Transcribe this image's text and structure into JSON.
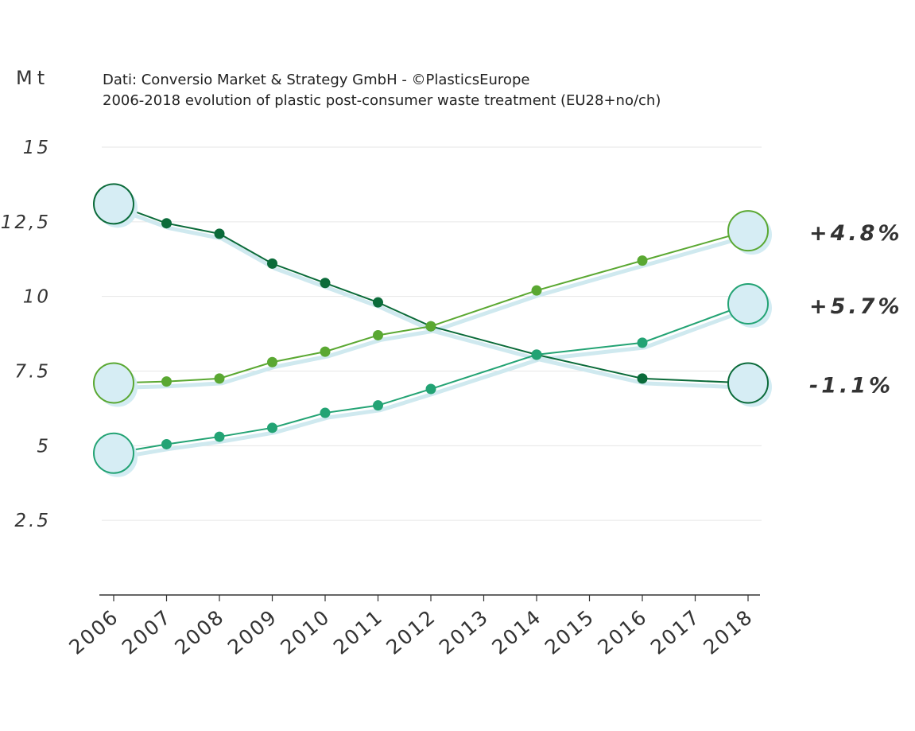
{
  "chart_data": {
    "type": "line",
    "unit_label": "Mt",
    "source": "Dati: Conversio Market & Strategy GmbH - ©PlasticsEurope",
    "title": "2006-2018 evolution of plastic post-consumer waste treatment (EU28+no/ch)",
    "x": [
      "2006",
      "2007",
      "2008",
      "2009",
      "2010",
      "2011",
      "2012",
      "2013",
      "2014",
      "2015",
      "2016",
      "2017",
      "2018"
    ],
    "y_ticks": [
      "15",
      "12,5",
      "10",
      "7.5",
      "5",
      "2.5"
    ],
    "y_tick_values": [
      15,
      12.5,
      10,
      7.5,
      5,
      2.5
    ],
    "ylim": [
      0,
      15
    ],
    "grid": true,
    "series": [
      {
        "color": "#0b6b3a",
        "change_label": "-1.1%",
        "points": [
          [
            2006,
            13.1
          ],
          [
            2007,
            12.45
          ],
          [
            2008,
            12.1
          ],
          [
            2009,
            11.1
          ],
          [
            2010,
            10.45
          ],
          [
            2011,
            9.8
          ],
          [
            2012,
            9.0
          ],
          [
            2014,
            8.05
          ],
          [
            2016,
            7.25
          ],
          [
            2018,
            7.1
          ]
        ]
      },
      {
        "color": "#5aa832",
        "change_label": "+4.8%",
        "points": [
          [
            2006,
            7.1
          ],
          [
            2007,
            7.15
          ],
          [
            2008,
            7.25
          ],
          [
            2009,
            7.8
          ],
          [
            2010,
            8.15
          ],
          [
            2011,
            8.7
          ],
          [
            2012,
            9.0
          ],
          [
            2014,
            10.2
          ],
          [
            2016,
            11.2
          ],
          [
            2018,
            12.2
          ]
        ]
      },
      {
        "color": "#23a374",
        "change_label": "+5.7%",
        "points": [
          [
            2006,
            4.75
          ],
          [
            2007,
            5.05
          ],
          [
            2008,
            5.3
          ],
          [
            2009,
            5.6
          ],
          [
            2010,
            6.1
          ],
          [
            2011,
            6.35
          ],
          [
            2012,
            6.9
          ],
          [
            2014,
            8.05
          ],
          [
            2016,
            8.45
          ],
          [
            2018,
            9.75
          ]
        ]
      }
    ]
  }
}
